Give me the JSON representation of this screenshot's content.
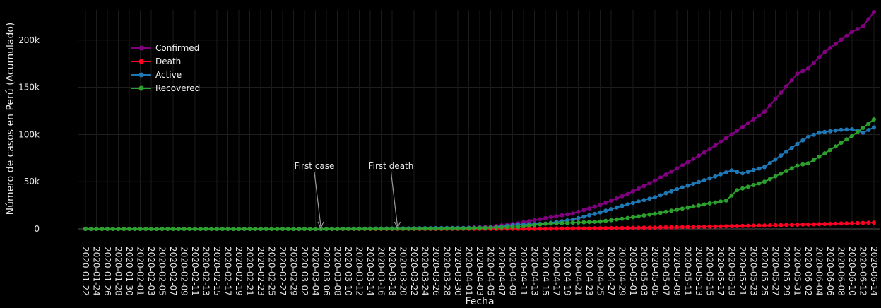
{
  "chart_data": {
    "type": "line",
    "xlabel": "Fecha",
    "ylabel": "Número de casos en Perú (Acumulado)",
    "ylim": [
      0,
      232000
    ],
    "yticks": [
      0,
      50000,
      100000,
      150000,
      200000
    ],
    "ytick_labels": [
      "0",
      "50k",
      "100k",
      "150k",
      "200k"
    ],
    "x_start": "2020-01-22",
    "x_end": "2020-06-14",
    "xtick_labels": [
      "2020-01-22",
      "2020-01-24",
      "2020-01-26",
      "2020-01-28",
      "2020-01-30",
      "2020-02-01",
      "2020-02-03",
      "2020-02-05",
      "2020-02-07",
      "2020-02-09",
      "2020-02-11",
      "2020-02-13",
      "2020-02-15",
      "2020-02-17",
      "2020-02-19",
      "2020-02-21",
      "2020-02-23",
      "2020-02-25",
      "2020-02-27",
      "2020-02-29",
      "2020-03-02",
      "2020-03-04",
      "2020-03-06",
      "2020-03-08",
      "2020-03-10",
      "2020-03-12",
      "2020-03-14",
      "2020-03-16",
      "2020-03-18",
      "2020-03-20",
      "2020-03-22",
      "2020-03-24",
      "2020-03-26",
      "2020-03-28",
      "2020-03-30",
      "2020-04-01",
      "2020-04-03",
      "2020-04-05",
      "2020-04-07",
      "2020-04-09",
      "2020-04-11",
      "2020-04-13",
      "2020-04-15",
      "2020-04-17",
      "2020-04-19",
      "2020-04-21",
      "2020-04-23",
      "2020-04-25",
      "2020-04-27",
      "2020-04-29",
      "2020-05-01",
      "2020-05-03",
      "2020-05-05",
      "2020-05-07",
      "2020-05-09",
      "2020-05-11",
      "2020-05-13",
      "2020-05-15",
      "2020-05-17",
      "2020-05-19",
      "2020-05-21",
      "2020-05-23",
      "2020-05-25",
      "2020-05-27",
      "2020-05-29",
      "2020-05-31",
      "2020-06-02",
      "2020-06-04",
      "2020-06-06",
      "2020-06-08",
      "2020-06-10",
      "2020-06-12",
      "2020-06-14"
    ],
    "legend_position": "top-left",
    "grid": true,
    "series": [
      {
        "name": "Confirmed",
        "color": "#800080",
        "key_points": [
          [
            "2020-03-06",
            0
          ],
          [
            "2020-03-20",
            300
          ],
          [
            "2020-03-31",
            1065
          ],
          [
            "2020-04-05",
            2281
          ],
          [
            "2020-04-10",
            5897
          ],
          [
            "2020-04-15",
            11475
          ],
          [
            "2020-04-20",
            16325
          ],
          [
            "2020-04-25",
            25331
          ],
          [
            "2020-04-30",
            36976
          ],
          [
            "2020-05-05",
            51189
          ],
          [
            "2020-05-10",
            67307
          ],
          [
            "2020-05-15",
            84495
          ],
          [
            "2020-05-20",
            104020
          ],
          [
            "2020-05-25",
            123979
          ],
          [
            "2020-05-31",
            164476
          ],
          [
            "2020-06-02",
            170039
          ],
          [
            "2020-06-05",
            187400
          ],
          [
            "2020-06-10",
            208823
          ],
          [
            "2020-06-12",
            214788
          ],
          [
            "2020-06-14",
            229736
          ]
        ]
      },
      {
        "name": "Death",
        "color": "#ff0022",
        "key_points": [
          [
            "2020-03-19",
            0
          ],
          [
            "2020-03-20",
            1
          ],
          [
            "2020-04-05",
            83
          ],
          [
            "2020-04-15",
            254
          ],
          [
            "2020-04-25",
            700
          ],
          [
            "2020-05-05",
            1444
          ],
          [
            "2020-05-15",
            2392
          ],
          [
            "2020-05-25",
            3629
          ],
          [
            "2020-06-05",
            5162
          ],
          [
            "2020-06-14",
            6688
          ]
        ]
      },
      {
        "name": "Active",
        "color": "#1f77b4",
        "key_points": [
          [
            "2020-03-06",
            0
          ],
          [
            "2020-03-31",
            990
          ],
          [
            "2020-04-05",
            1300
          ],
          [
            "2020-04-10",
            4400
          ],
          [
            "2020-04-15",
            5600
          ],
          [
            "2020-04-20",
            9800
          ],
          [
            "2020-04-25",
            17500
          ],
          [
            "2020-04-30",
            26000
          ],
          [
            "2020-05-05",
            33500
          ],
          [
            "2020-05-10",
            44000
          ],
          [
            "2020-05-15",
            53500
          ],
          [
            "2020-05-19",
            62000
          ],
          [
            "2020-05-21",
            59000
          ],
          [
            "2020-05-25",
            65500
          ],
          [
            "2020-05-31",
            90000
          ],
          [
            "2020-06-02",
            97500
          ],
          [
            "2020-06-04",
            102000
          ],
          [
            "2020-06-08",
            105000
          ],
          [
            "2020-06-10",
            105500
          ],
          [
            "2020-06-12",
            102000
          ],
          [
            "2020-06-14",
            107500
          ]
        ]
      },
      {
        "name": "Recovered",
        "color": "#2ca02c",
        "key_points": [
          [
            "2020-03-06",
            0
          ],
          [
            "2020-03-31",
            400
          ],
          [
            "2020-04-10",
            2100
          ],
          [
            "2020-04-15",
            5500
          ],
          [
            "2020-04-20",
            6500
          ],
          [
            "2020-04-25",
            7800
          ],
          [
            "2020-04-30",
            11500
          ],
          [
            "2020-05-05",
            16000
          ],
          [
            "2020-05-10",
            21500
          ],
          [
            "2020-05-15",
            27000
          ],
          [
            "2020-05-18",
            30000
          ],
          [
            "2020-05-20",
            41000
          ],
          [
            "2020-05-25",
            50000
          ],
          [
            "2020-05-31",
            67000
          ],
          [
            "2020-06-02",
            69500
          ],
          [
            "2020-06-05",
            80000
          ],
          [
            "2020-06-10",
            98500
          ],
          [
            "2020-06-12",
            107000
          ],
          [
            "2020-06-14",
            116000
          ]
        ]
      }
    ],
    "annotations": [
      {
        "text": "First case",
        "date": "2020-03-06",
        "value": 0
      },
      {
        "text": "First death",
        "date": "2020-03-20",
        "value": 0
      }
    ]
  }
}
